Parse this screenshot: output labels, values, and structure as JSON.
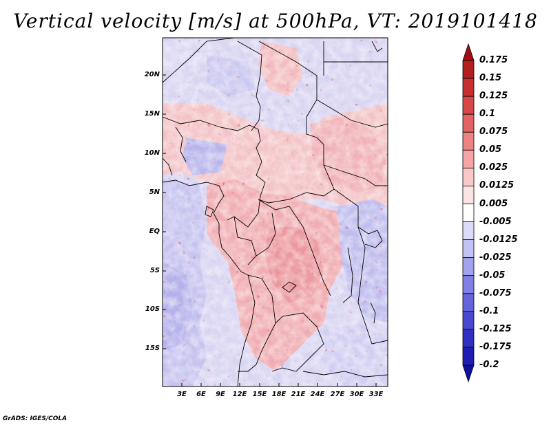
{
  "title": "Vertical velocity [m/s] at 500hPa, VT: 2019101418",
  "credit": "GrADS: IGES/COLA",
  "axes": {
    "lat_labels": [
      "20N",
      "15N",
      "10N",
      "5N",
      "EQ",
      "5S",
      "10S",
      "15S"
    ],
    "lon_labels": [
      "3E",
      "6E",
      "9E",
      "12E",
      "15E",
      "18E",
      "21E",
      "24E",
      "27E",
      "30E",
      "33E"
    ]
  },
  "colorbar": {
    "labels": [
      "0.175",
      "0.15",
      "0.125",
      "0.1",
      "0.075",
      "0.05",
      "0.025",
      "0.0125",
      "0.005",
      "-0.005",
      "-0.0125",
      "-0.025",
      "-0.05",
      "-0.075",
      "-0.1",
      "-0.125",
      "-0.175",
      "-0.2"
    ],
    "colors": [
      "#a00d10",
      "#b51e1e",
      "#c73030",
      "#d84848",
      "#e46464",
      "#ee8383",
      "#f5a5a5",
      "#fac8c8",
      "#fde4e4",
      "#ffffff",
      "#dcdcfa",
      "#c2c2f4",
      "#a2a2ee",
      "#8080e6",
      "#6464dc",
      "#4848d0",
      "#3030c2",
      "#1e1eb4",
      "#0f0fa0"
    ]
  }
}
